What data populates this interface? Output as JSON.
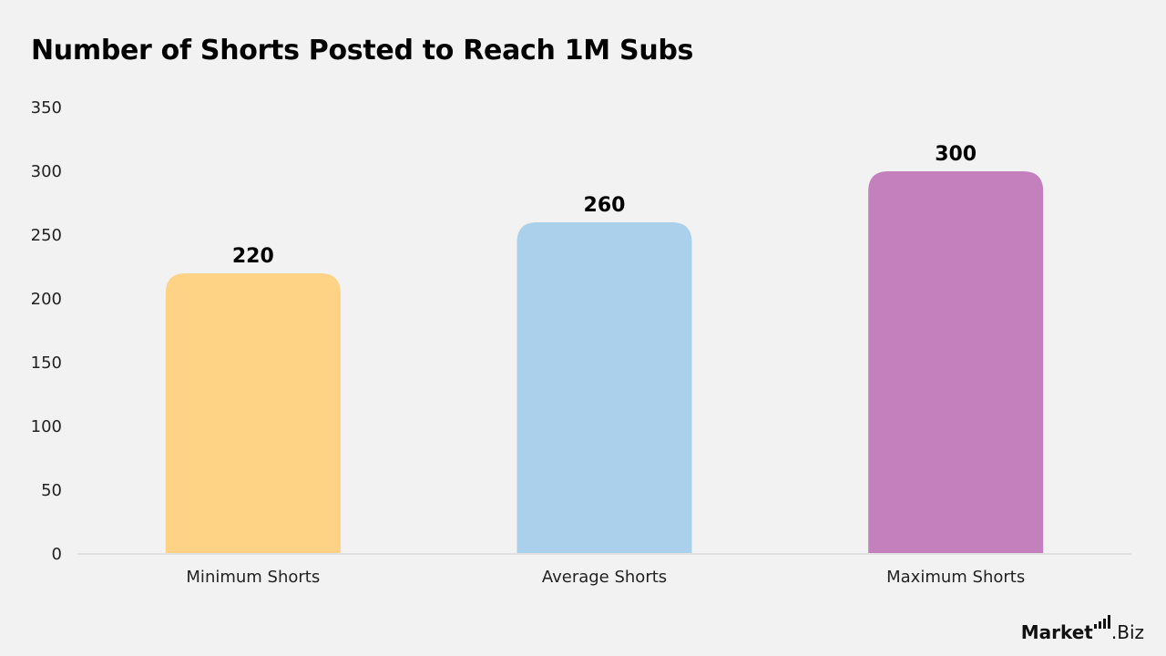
{
  "chart_data": {
    "type": "bar",
    "title": "Number of Shorts Posted to Reach 1M Subs",
    "categories": [
      "Minimum Shorts",
      "Average Shorts",
      "Maximum Shorts"
    ],
    "values": [
      220,
      260,
      300
    ],
    "data_labels": [
      "220",
      "260",
      "300"
    ],
    "colors": [
      "#fed386",
      "#aad0eb",
      "#c47fbd"
    ],
    "ylim": [
      0,
      350
    ],
    "yticks": [
      0,
      50,
      100,
      150,
      200,
      250,
      300,
      350
    ],
    "grid": false,
    "legend": "none"
  },
  "brand": {
    "part1": "Market",
    "part2": ".Biz"
  }
}
